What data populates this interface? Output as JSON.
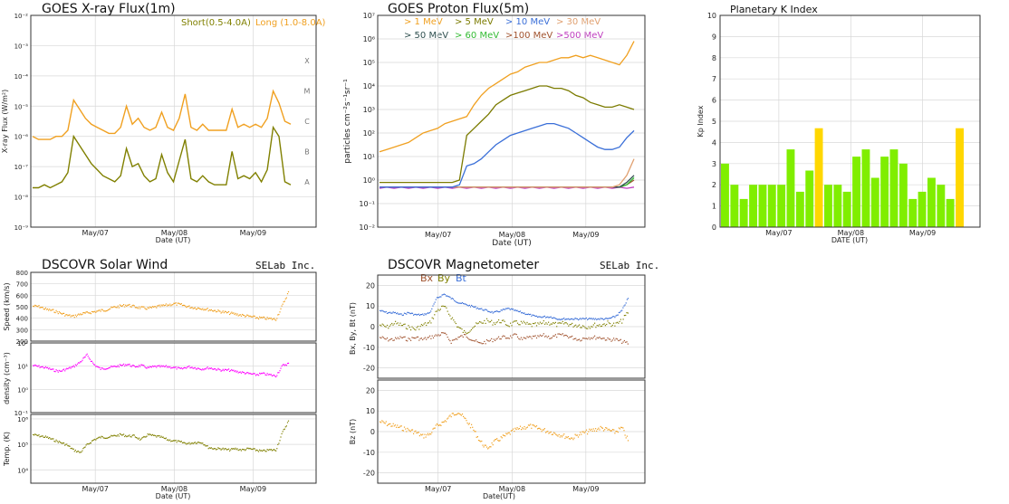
{
  "colors": {
    "short": "#808000",
    "long": "#f0a020",
    "kp_green": "#80ee00",
    "kp_yellow": "#ffd700",
    "p1": "#f0a020",
    "p5": "#7b7b00",
    "p10": "#3a6fd8",
    "p30": "#e0a070",
    "p50": "#2f4f4f",
    "p60": "#33bb33",
    "p100": "#a0522d",
    "p500": "#c040c0",
    "speed": "#f0a020",
    "density": "#ff00ff",
    "temp": "#808000",
    "bx": "#a0522d",
    "by": "#808000",
    "bt": "#3a6fd8",
    "bz": "#f0a020"
  },
  "chart_data": [
    {
      "id": "xray",
      "type": "line",
      "title": "GOES X-ray Flux(1m)",
      "xlabel": "Date (UT)",
      "ylabel": "X-ray Flux (W/m²)",
      "x_ticks": [
        "May/07",
        "May/08",
        "May/09"
      ],
      "y_scale": "log",
      "ylim": [
        1e-09,
        0.01
      ],
      "y_ticks": [
        "10⁻⁹",
        "10⁻⁸",
        "10⁻⁷",
        "10⁻⁶",
        "10⁻⁵",
        "10⁻⁴",
        "10⁻³",
        "10⁻²"
      ],
      "class_labels": [
        "A",
        "B",
        "C",
        "M",
        "X"
      ],
      "legend": [
        "Short(0.5-4.0A)",
        "Long (1.0-8.0A)"
      ],
      "series": [
        {
          "name": "Short(0.5-4.0A)",
          "log_values": [
            -7.7,
            -7.7,
            -7.6,
            -7.7,
            -7.6,
            -7.5,
            -7.2,
            -6.0,
            -6.3,
            -6.6,
            -6.9,
            -7.1,
            -7.3,
            -7.4,
            -7.5,
            -7.3,
            -6.4,
            -7.0,
            -6.9,
            -7.3,
            -7.5,
            -7.4,
            -6.6,
            -7.2,
            -7.5,
            -6.8,
            -6.1,
            -7.4,
            -7.5,
            -7.3,
            -7.5,
            -7.6,
            -7.6,
            -7.6,
            -6.5,
            -7.4,
            -7.3,
            -7.4,
            -7.2,
            -7.5,
            -7.1,
            -5.7,
            -6.0,
            -7.5,
            -7.6
          ]
        },
        {
          "name": "Long (1.0-8.0A)",
          "log_values": [
            -6.0,
            -6.1,
            -6.1,
            -6.1,
            -6.0,
            -6.0,
            -5.8,
            -4.8,
            -5.1,
            -5.4,
            -5.6,
            -5.7,
            -5.8,
            -5.9,
            -5.9,
            -5.7,
            -5.0,
            -5.6,
            -5.4,
            -5.7,
            -5.8,
            -5.7,
            -5.2,
            -5.7,
            -5.8,
            -5.4,
            -4.6,
            -5.7,
            -5.8,
            -5.6,
            -5.8,
            -5.8,
            -5.8,
            -5.8,
            -5.1,
            -5.7,
            -5.6,
            -5.7,
            -5.6,
            -5.7,
            -5.4,
            -4.5,
            -4.9,
            -5.5,
            -5.6
          ]
        }
      ]
    },
    {
      "id": "proton",
      "type": "line",
      "title": "GOES Proton Flux(5m)",
      "xlabel": "Date (UT)",
      "ylabel": "particles cm⁻²s⁻¹sr⁻¹",
      "x_ticks": [
        "May/07",
        "May/08",
        "May/09"
      ],
      "y_scale": "log",
      "ylim": [
        0.01,
        10000000.0
      ],
      "y_ticks": [
        "10⁻²",
        "10⁻¹",
        "10⁰",
        "10¹",
        "10²",
        "10³",
        "10⁴",
        "10⁵",
        "10⁶",
        "10⁷"
      ],
      "legend": [
        "> 1 MeV",
        "> 5 MeV",
        "> 10 MeV",
        "> 30 MeV",
        "> 50 MeV",
        "> 60 MeV",
        ">100 MeV",
        ">500 MeV"
      ],
      "series": [
        {
          "name": "> 1 MeV",
          "log_values": [
            1.2,
            1.3,
            1.4,
            1.5,
            1.6,
            1.8,
            2.0,
            2.1,
            2.2,
            2.4,
            2.5,
            2.6,
            2.7,
            3.2,
            3.6,
            3.9,
            4.1,
            4.3,
            4.5,
            4.6,
            4.8,
            4.9,
            5.0,
            5.0,
            5.1,
            5.2,
            5.2,
            5.3,
            5.2,
            5.3,
            5.2,
            5.1,
            5.0,
            4.9,
            5.3,
            5.9
          ]
        },
        {
          "name": "> 5 MeV",
          "log_values": [
            -0.1,
            -0.1,
            -0.1,
            -0.1,
            -0.1,
            -0.1,
            -0.1,
            -0.1,
            -0.1,
            -0.1,
            -0.1,
            0.0,
            1.9,
            2.2,
            2.5,
            2.8,
            3.2,
            3.4,
            3.6,
            3.7,
            3.8,
            3.9,
            4.0,
            4.0,
            3.9,
            3.9,
            3.8,
            3.6,
            3.5,
            3.3,
            3.2,
            3.1,
            3.1,
            3.2,
            3.1,
            3.0
          ]
        },
        {
          "name": "> 10 MeV",
          "log_values": [
            -0.3,
            -0.3,
            -0.3,
            -0.3,
            -0.3,
            -0.3,
            -0.3,
            -0.3,
            -0.3,
            -0.3,
            -0.3,
            -0.2,
            0.6,
            0.7,
            0.9,
            1.2,
            1.5,
            1.7,
            1.9,
            2.0,
            2.1,
            2.2,
            2.3,
            2.4,
            2.4,
            2.3,
            2.2,
            2.0,
            1.8,
            1.6,
            1.4,
            1.3,
            1.3,
            1.4,
            1.8,
            2.1
          ]
        },
        {
          "name": "> 30 MeV",
          "log_values": [
            -0.3,
            -0.3,
            -0.3,
            -0.3,
            -0.3,
            -0.3,
            -0.3,
            -0.3,
            -0.3,
            -0.3,
            -0.3,
            -0.3,
            -0.3,
            -0.3,
            -0.3,
            -0.3,
            -0.3,
            -0.3,
            -0.3,
            -0.3,
            -0.3,
            -0.3,
            -0.3,
            -0.3,
            -0.3,
            -0.3,
            -0.3,
            -0.3,
            -0.3,
            -0.3,
            -0.3,
            -0.3,
            -0.3,
            -0.2,
            0.2,
            0.9
          ]
        },
        {
          "name": "> 50 MeV",
          "log_values": [
            -0.3,
            -0.3,
            -0.3,
            -0.3,
            -0.3,
            -0.3,
            -0.3,
            -0.3,
            -0.3,
            -0.3,
            -0.3,
            -0.3,
            -0.3,
            -0.3,
            -0.3,
            -0.3,
            -0.3,
            -0.3,
            -0.3,
            -0.3,
            -0.3,
            -0.3,
            -0.3,
            -0.3,
            -0.3,
            -0.3,
            -0.3,
            -0.3,
            -0.3,
            -0.3,
            -0.3,
            -0.3,
            -0.3,
            -0.3,
            -0.1,
            0.2
          ]
        },
        {
          "name": "> 60 MeV",
          "log_values": [
            -0.3,
            -0.3,
            -0.3,
            -0.3,
            -0.3,
            -0.3,
            -0.3,
            -0.3,
            -0.3,
            -0.3,
            -0.3,
            -0.3,
            -0.3,
            -0.3,
            -0.3,
            -0.3,
            -0.3,
            -0.3,
            -0.3,
            -0.3,
            -0.3,
            -0.3,
            -0.3,
            -0.3,
            -0.3,
            -0.3,
            -0.3,
            -0.3,
            -0.3,
            -0.3,
            -0.3,
            -0.3,
            -0.3,
            -0.3,
            -0.2,
            0.1
          ]
        },
        {
          "name": ">100 MeV",
          "log_values": [
            -0.3,
            -0.3,
            -0.3,
            -0.3,
            -0.3,
            -0.3,
            -0.3,
            -0.3,
            -0.3,
            -0.3,
            -0.3,
            -0.3,
            -0.3,
            -0.3,
            -0.3,
            -0.3,
            -0.3,
            -0.3,
            -0.3,
            -0.3,
            -0.3,
            -0.3,
            -0.3,
            -0.3,
            -0.3,
            -0.3,
            -0.3,
            -0.3,
            -0.3,
            -0.3,
            -0.3,
            -0.3,
            -0.3,
            -0.3,
            -0.2,
            0.0
          ]
        },
        {
          "name": ">500 MeV",
          "log_values": [
            -0.35,
            -0.3,
            -0.35,
            -0.3,
            -0.35,
            -0.3,
            -0.35,
            -0.3,
            -0.35,
            -0.3,
            -0.35,
            -0.3,
            -0.35,
            -0.3,
            -0.35,
            -0.3,
            -0.35,
            -0.3,
            -0.35,
            -0.3,
            -0.35,
            -0.3,
            -0.35,
            -0.3,
            -0.35,
            -0.3,
            -0.35,
            -0.3,
            -0.35,
            -0.3,
            -0.35,
            -0.3,
            -0.35,
            -0.3,
            -0.35,
            -0.3
          ]
        }
      ]
    },
    {
      "id": "kp",
      "type": "bar",
      "title": "Planetary K Index",
      "xlabel": "DATE (UT)",
      "ylabel": "Kp Index",
      "x_ticks": [
        "May/07",
        "May/08",
        "May/09"
      ],
      "ylim": [
        0,
        10
      ],
      "y_ticks": [
        "0",
        "1",
        "2",
        "3",
        "4",
        "5",
        "6",
        "7",
        "8",
        "9",
        "10"
      ],
      "values": [
        3.0,
        2.0,
        1.33,
        2.0,
        2.0,
        2.0,
        2.0,
        3.67,
        1.67,
        2.67,
        4.67,
        2.0,
        2.0,
        1.67,
        3.33,
        3.67,
        2.33,
        3.33,
        3.67,
        3.0,
        1.33,
        1.67,
        2.33,
        2.0,
        1.33,
        4.67
      ],
      "storm_threshold": 4
    },
    {
      "id": "solarwind",
      "type": "scatter",
      "title": "DSCOVR Solar Wind",
      "brand": "SELab Inc.",
      "xlabel": "Date (UT)",
      "x_ticks": [
        "May/07",
        "May/08",
        "May/09"
      ],
      "panels": [
        {
          "ylabel": "Speed (km/s)",
          "ylim": [
            200,
            800
          ],
          "y_ticks": [
            "200",
            "300",
            "400",
            "500",
            "600",
            "700",
            "800"
          ],
          "values": [
            510,
            505,
            480,
            470,
            450,
            430,
            420,
            440,
            450,
            460,
            470,
            480,
            500,
            510,
            520,
            505,
            495,
            490,
            500,
            510,
            520,
            530,
            520,
            505,
            495,
            490,
            480,
            470,
            460,
            450,
            440,
            430,
            420,
            410,
            405,
            400,
            395,
            520,
            650
          ]
        },
        {
          "ylabel": "density (cm⁻³)",
          "y_scale": "log",
          "ylim": [
            0.1,
            100
          ],
          "y_ticks": [
            "10⁻¹",
            "10⁰",
            "10¹",
            "10²"
          ],
          "log_values": [
            1.05,
            1.0,
            0.95,
            0.85,
            0.8,
            0.9,
            1.0,
            1.2,
            1.5,
            1.1,
            0.9,
            0.95,
            1.0,
            1.05,
            1.1,
            1.0,
            1.05,
            0.95,
            1.0,
            1.0,
            1.0,
            0.95,
            0.9,
            1.0,
            0.95,
            0.9,
            0.95,
            0.9,
            0.85,
            0.85,
            0.8,
            0.75,
            0.7,
            0.65,
            0.7,
            0.65,
            0.6,
            1.05,
            1.15
          ]
        },
        {
          "ylabel": "Temp. (K)",
          "y_scale": "log",
          "ylim": [
            3000,
            1500000
          ],
          "y_ticks": [
            "10⁴",
            "10⁵",
            "10⁶"
          ],
          "log_values": [
            5.4,
            5.35,
            5.3,
            5.2,
            5.1,
            5.0,
            4.8,
            4.7,
            5.0,
            5.2,
            5.3,
            5.3,
            5.35,
            5.4,
            5.35,
            5.35,
            5.2,
            5.4,
            5.35,
            5.3,
            5.2,
            5.15,
            5.1,
            5.05,
            5.1,
            5.1,
            4.9,
            4.85,
            4.85,
            4.8,
            4.85,
            4.8,
            4.85,
            4.8,
            4.75,
            4.8,
            4.8,
            5.5,
            6.0
          ]
        }
      ]
    },
    {
      "id": "mag",
      "type": "scatter",
      "title": "DSCOVR Magnetometer",
      "brand": "SELab Inc.",
      "xlabel": "Date(UT)",
      "x_ticks": [
        "May/07",
        "May/08",
        "May/09"
      ],
      "legend": [
        "Bx",
        "By",
        "Bt"
      ],
      "panels": [
        {
          "ylabel": "Bx, By, Bt (nT)",
          "ylim": [
            -25,
            25
          ],
          "y_ticks": [
            "-20",
            "-10",
            "0",
            "10",
            "20"
          ],
          "series": [
            {
              "name": "Bx",
              "values": [
                -5,
                -6,
                -6,
                -5,
                -6,
                -5,
                -6,
                -5,
                -4,
                -3,
                -7,
                -5,
                -4,
                -6,
                -8,
                -7,
                -6,
                -5,
                -5,
                -4,
                -6,
                -5,
                -5,
                -4,
                -5,
                -4,
                -4,
                -5,
                -6,
                -5,
                -5,
                -5,
                -6,
                -6,
                -7,
                -8
              ]
            },
            {
              "name": "By",
              "values": [
                1,
                0,
                2,
                1,
                0,
                -1,
                1,
                2,
                8,
                10,
                5,
                0,
                -3,
                0,
                2,
                3,
                2,
                3,
                1,
                2,
                2,
                1,
                1,
                2,
                2,
                1,
                2,
                1,
                1,
                0,
                1,
                1,
                2,
                1,
                3,
                8
              ]
            },
            {
              "name": "Bt",
              "values": [
                8,
                7,
                7,
                6,
                7,
                6,
                6,
                7,
                14,
                16,
                14,
                12,
                11,
                10,
                9,
                8,
                7,
                8,
                9,
                8,
                7,
                6,
                5,
                5,
                5,
                4,
                4,
                4,
                4,
                4,
                4,
                4,
                4,
                5,
                8,
                15
              ]
            }
          ]
        },
        {
          "ylabel": "Bz (nT)",
          "ylim": [
            -25,
            25
          ],
          "y_ticks": [
            "-20",
            "-10",
            "0",
            "10",
            "20"
          ],
          "values": [
            5,
            4,
            3,
            2,
            1,
            0,
            -2,
            -1,
            3,
            5,
            8,
            10,
            6,
            2,
            -4,
            -8,
            -5,
            -3,
            -1,
            1,
            2,
            3,
            2,
            1,
            0,
            -1,
            -2,
            -3,
            -1,
            0,
            1,
            2,
            1,
            0,
            2,
            -5
          ]
        }
      ]
    }
  ]
}
